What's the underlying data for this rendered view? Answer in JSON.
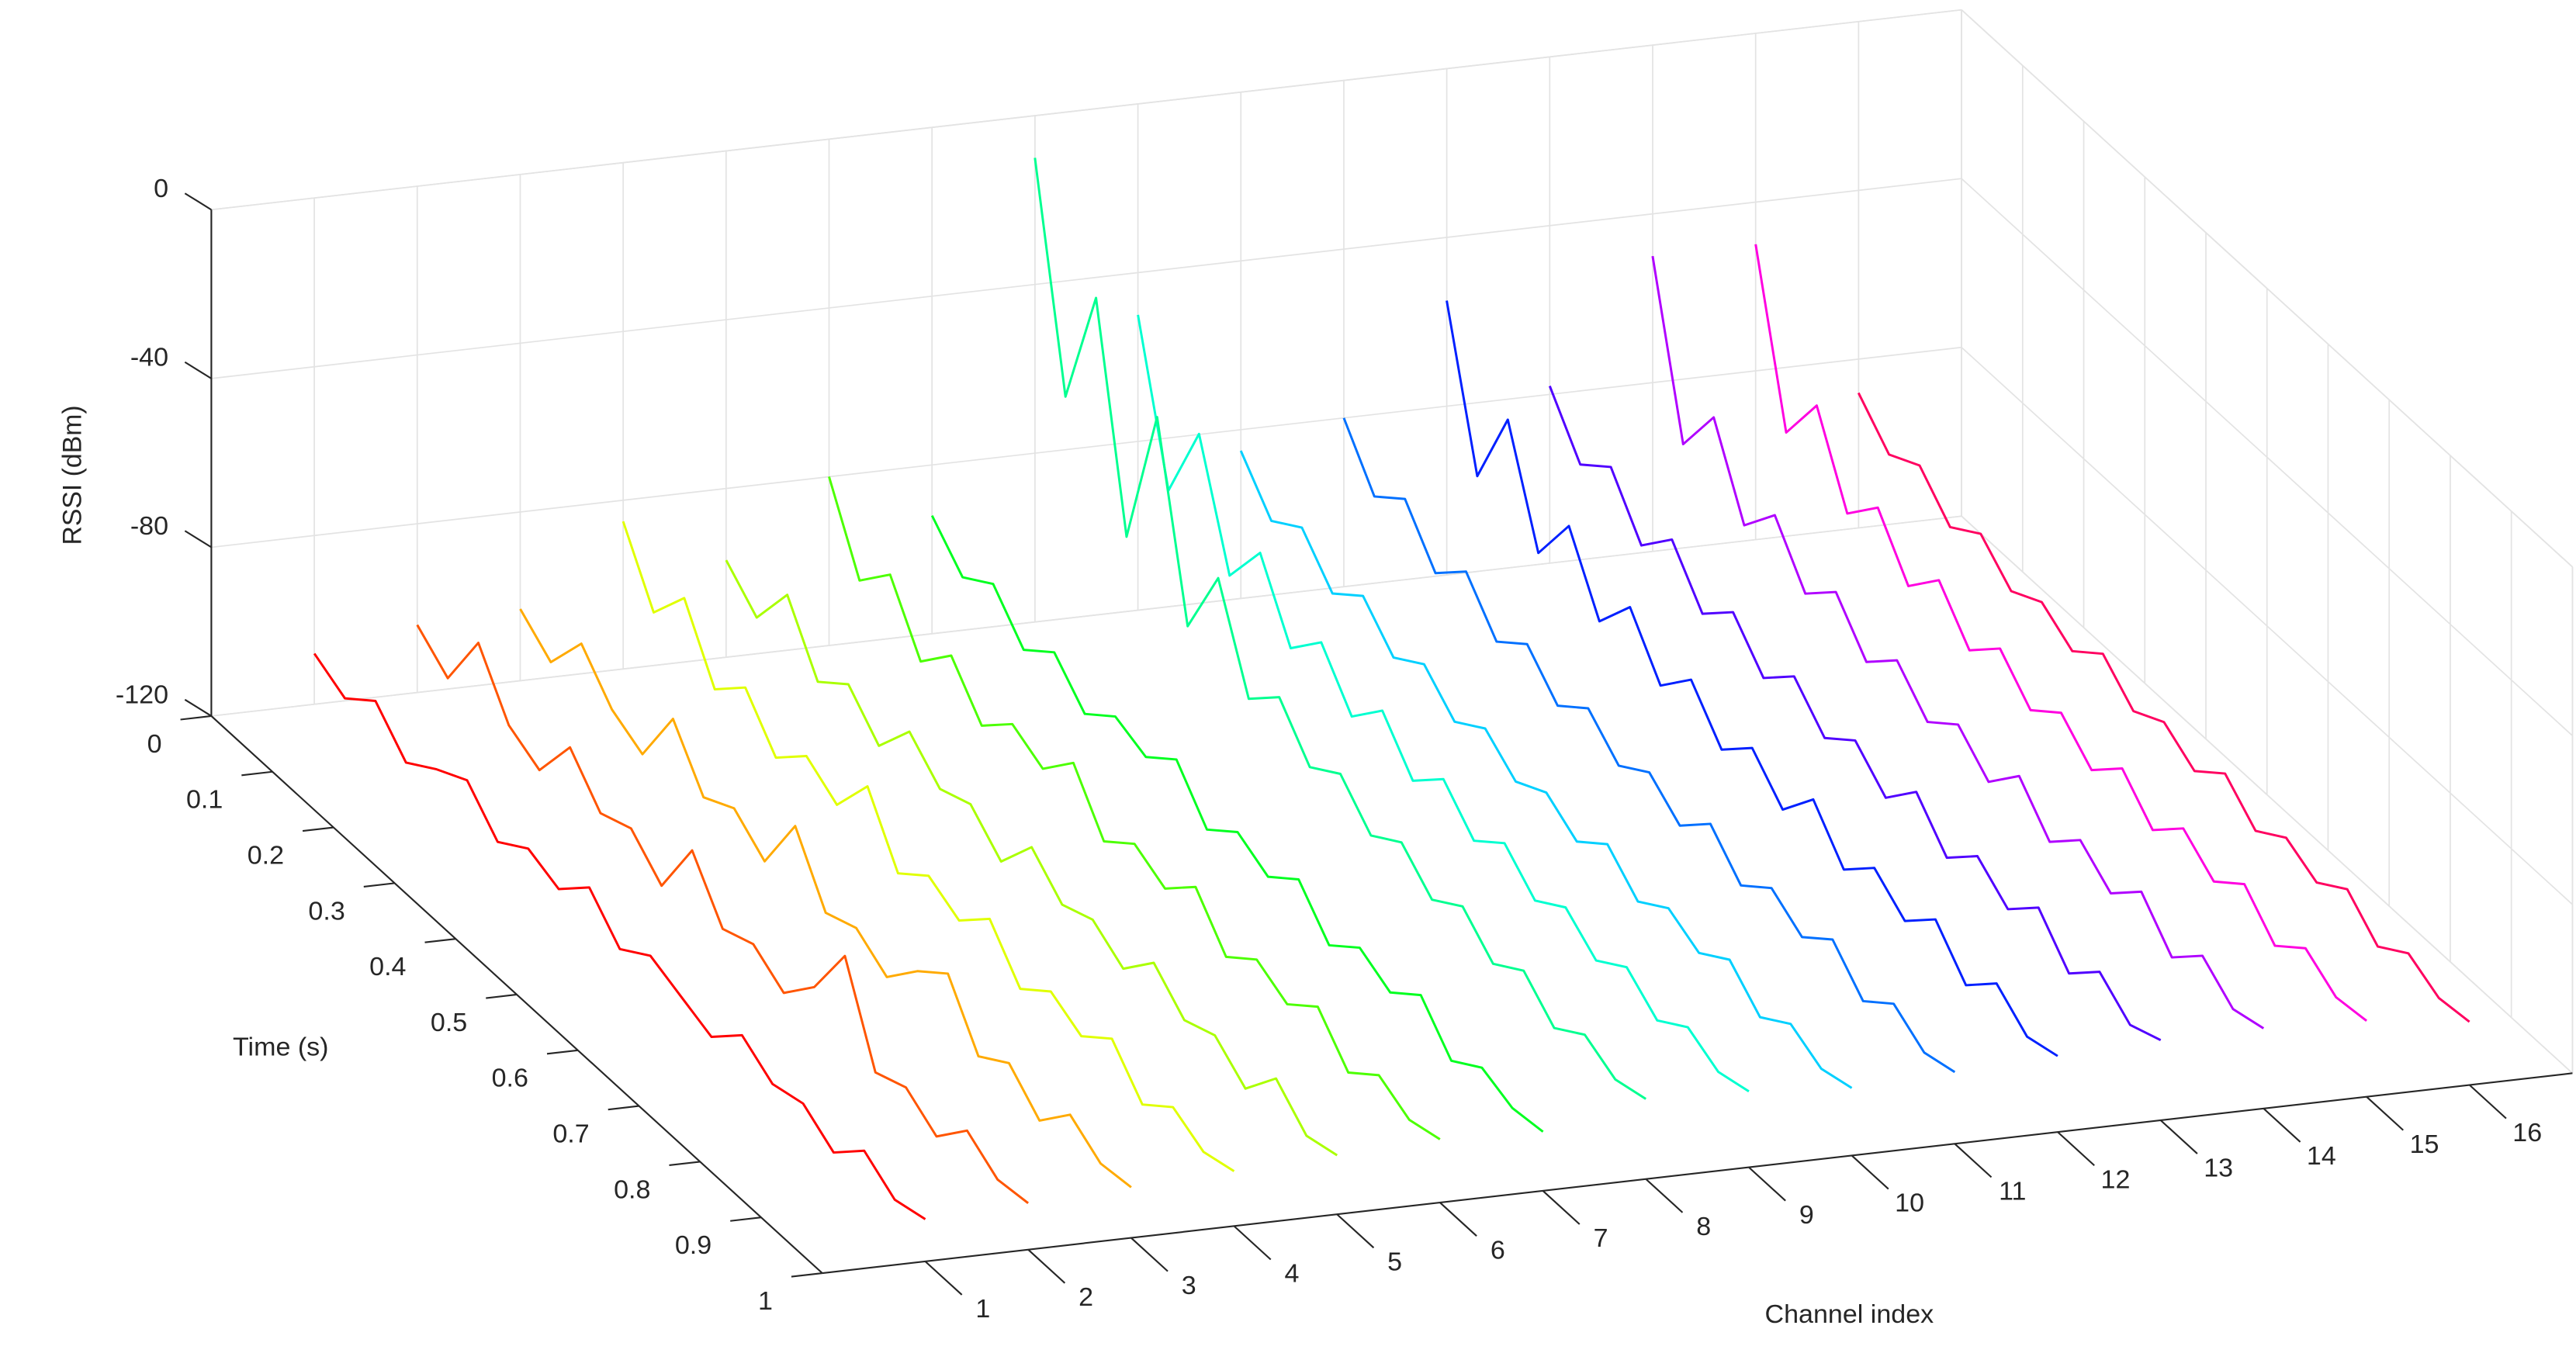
{
  "chart_data": {
    "type": "waterfall3d",
    "xlabel": "Channel index",
    "ylabel": "Time (s)",
    "zlabel": "RSSI (dBm)",
    "xlim": [
      0,
      17
    ],
    "xticks": [
      1,
      2,
      3,
      4,
      5,
      6,
      7,
      8,
      9,
      10,
      11,
      12,
      13,
      14,
      15,
      16
    ],
    "ylim": [
      0,
      1
    ],
    "yticks": [
      0,
      0.1,
      0.2,
      0.3,
      0.4,
      0.5,
      0.6,
      0.7,
      0.8,
      0.9,
      1
    ],
    "zlim": [
      -120,
      0
    ],
    "zticks": [
      -120,
      -80,
      -40,
      0
    ],
    "grid": true,
    "x": [
      0,
      0.05,
      0.1,
      0.15,
      0.2,
      0.25,
      0.3,
      0.35,
      0.4,
      0.45,
      0.5,
      0.55,
      0.6,
      0.65,
      0.7,
      0.75,
      0.8,
      0.85,
      0.9,
      0.95,
      1
    ],
    "series": [
      {
        "channel": 1,
        "color": "#ff0000",
        "values": [
          -108,
          -112,
          -106,
          -114,
          -109,
          -105,
          -113,
          -108,
          -111,
          -104,
          -112,
          -107,
          -110,
          -113,
          -106,
          -111,
          -109,
          -114,
          -107,
          -112,
          -110
        ]
      },
      {
        "channel": 2,
        "color": "#ff5500",
        "values": [
          -104,
          -110,
          -95,
          -108,
          -112,
          -100,
          -109,
          -106,
          -113,
          -98,
          -110,
          -107,
          -112,
          -104,
          -90,
          -111,
          -108,
          -113,
          -105,
          -110,
          -109
        ]
      },
      {
        "channel": 3,
        "color": "#ffaa00",
        "values": [
          -103,
          -109,
          -98,
          -107,
          -111,
          -96,
          -108,
          -104,
          -110,
          -95,
          -109,
          -106,
          -111,
          -103,
          -97,
          -110,
          -105,
          -112,
          -104,
          -109,
          -108
        ]
      },
      {
        "channel": 4,
        "color": "#e0ff00",
        "values": [
          -85,
          -100,
          -90,
          -105,
          -98,
          -108,
          -101,
          -106,
          -95,
          -109,
          -103,
          -107,
          -100,
          -110,
          -104,
          -108,
          -102,
          -111,
          -105,
          -109,
          -107
        ]
      },
      {
        "channel": 5,
        "color": "#aaff00",
        "values": [
          -97,
          -104,
          -92,
          -106,
          -100,
          -108,
          -98,
          -105,
          -102,
          -109,
          -99,
          -106,
          -103,
          -108,
          -100,
          -107,
          -104,
          -110,
          -101,
          -108,
          -106
        ]
      },
      {
        "channel": 6,
        "color": "#4cff00",
        "values": [
          -80,
          -98,
          -90,
          -104,
          -96,
          -106,
          -99,
          -103,
          -95,
          -107,
          -101,
          -105,
          -98,
          -108,
          -102,
          -106,
          -100,
          -109,
          -103,
          -107,
          -105
        ]
      },
      {
        "channel": 7,
        "color": "#00ff20",
        "values": [
          -92,
          -100,
          -95,
          -104,
          -98,
          -106,
          -100,
          -103,
          -97,
          -107,
          -101,
          -105,
          -99,
          -108,
          -102,
          -106,
          -100,
          -109,
          -104,
          -107,
          -106
        ]
      },
      {
        "channel": 8,
        "color": "#00ff90",
        "values": [
          -10,
          -60,
          -30,
          -80,
          -45,
          -88,
          -70,
          -92,
          -85,
          -95,
          -90,
          -98,
          -93,
          -100,
          -95,
          -102,
          -97,
          -104,
          -99,
          -103,
          -101
        ]
      },
      {
        "channel": 9,
        "color": "#00ffd0",
        "values": [
          -50,
          -85,
          -65,
          -92,
          -80,
          -96,
          -88,
          -99,
          -91,
          -101,
          -94,
          -102,
          -96,
          -103,
          -98,
          -104,
          -99,
          -105,
          -100,
          -104,
          -102
        ]
      },
      {
        "channel": 10,
        "color": "#00d0ff",
        "values": [
          -85,
          -95,
          -90,
          -99,
          -93,
          -101,
          -96,
          -103,
          -98,
          -104,
          -100,
          -105,
          -99,
          -106,
          -101,
          -105,
          -100,
          -107,
          -102,
          -106,
          -104
        ]
      },
      {
        "channel": 11,
        "color": "#0070ff",
        "values": [
          -80,
          -92,
          -86,
          -97,
          -90,
          -100,
          -94,
          -102,
          -96,
          -103,
          -98,
          -104,
          -97,
          -105,
          -99,
          -104,
          -98,
          -106,
          -100,
          -105,
          -103
        ]
      },
      {
        "channel": 12,
        "color": "#0020ff",
        "values": [
          -55,
          -90,
          -70,
          -95,
          -82,
          -98,
          -88,
          -100,
          -92,
          -102,
          -95,
          -103,
          -94,
          -104,
          -97,
          -103,
          -96,
          -105,
          -98,
          -104,
          -102
        ]
      },
      {
        "channel": 13,
        "color": "#5000ff",
        "values": [
          -78,
          -90,
          -84,
          -96,
          -88,
          -99,
          -92,
          -101,
          -94,
          -102,
          -96,
          -103,
          -95,
          -104,
          -97,
          -103,
          -96,
          -105,
          -98,
          -104,
          -101
        ]
      },
      {
        "channel": 14,
        "color": "#b000ff",
        "values": [
          -50,
          -88,
          -75,
          -94,
          -85,
          -97,
          -90,
          -100,
          -93,
          -101,
          -95,
          -102,
          -94,
          -103,
          -96,
          -102,
          -95,
          -104,
          -97,
          -103,
          -101
        ]
      },
      {
        "channel": 15,
        "color": "#ff00e0",
        "values": [
          -50,
          -88,
          -75,
          -94,
          -86,
          -98,
          -90,
          -100,
          -93,
          -101,
          -95,
          -102,
          -95,
          -103,
          -96,
          -102,
          -96,
          -104,
          -98,
          -103,
          -102
        ]
      },
      {
        "channel": 16,
        "color": "#ff0060",
        "values": [
          -88,
          -96,
          -92,
          -100,
          -95,
          -102,
          -98,
          -103,
          -97,
          -104,
          -100,
          -105,
          -99,
          -106,
          -101,
          -105,
          -100,
          -107,
          -102,
          -106,
          -105
        ]
      }
    ]
  }
}
